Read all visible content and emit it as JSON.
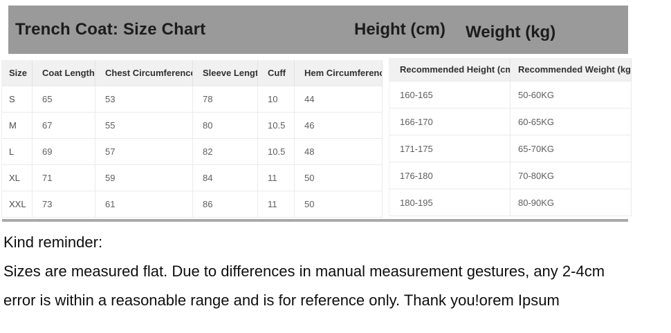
{
  "banner": {
    "title": "Trench Coat: Size Chart",
    "height_label": "Height (cm)",
    "weight_label": "Weight (kg)",
    "bg_color": "#9a9a9a"
  },
  "size_table": {
    "headers": [
      "Size",
      "Coat Length",
      "Chest Circumference",
      "Sleeve Length",
      "Cuff",
      "Hem Circumference"
    ],
    "rows": [
      [
        "S",
        "65",
        "53",
        "78",
        "10",
        "44"
      ],
      [
        "M",
        "67",
        "55",
        "80",
        "10.5",
        "46"
      ],
      [
        "L",
        "69",
        "57",
        "82",
        "10.5",
        "48"
      ],
      [
        "XL",
        "71",
        "59",
        "84",
        "11",
        "50"
      ],
      [
        "XXL",
        "73",
        "61",
        "86",
        "11",
        "50"
      ]
    ]
  },
  "fit_table": {
    "headers": [
      "Recommended Height (cm)",
      "Recommended Weight (kg)"
    ],
    "rows": [
      [
        "160-165",
        "50-60KG"
      ],
      [
        "166-170",
        "60-65KG"
      ],
      [
        "171-175",
        "65-70KG"
      ],
      [
        "176-180",
        "70-80KG"
      ],
      [
        "180-195",
        "80-90KG"
      ]
    ]
  },
  "reminder": {
    "heading": "Kind reminder:",
    "lines": [
      "Sizes are measured flat. Due to differences in manual measurement gestures, any 2-4cm",
      "error is within a reasonable range and is for reference only. Thank you!orem Ipsum"
    ]
  }
}
